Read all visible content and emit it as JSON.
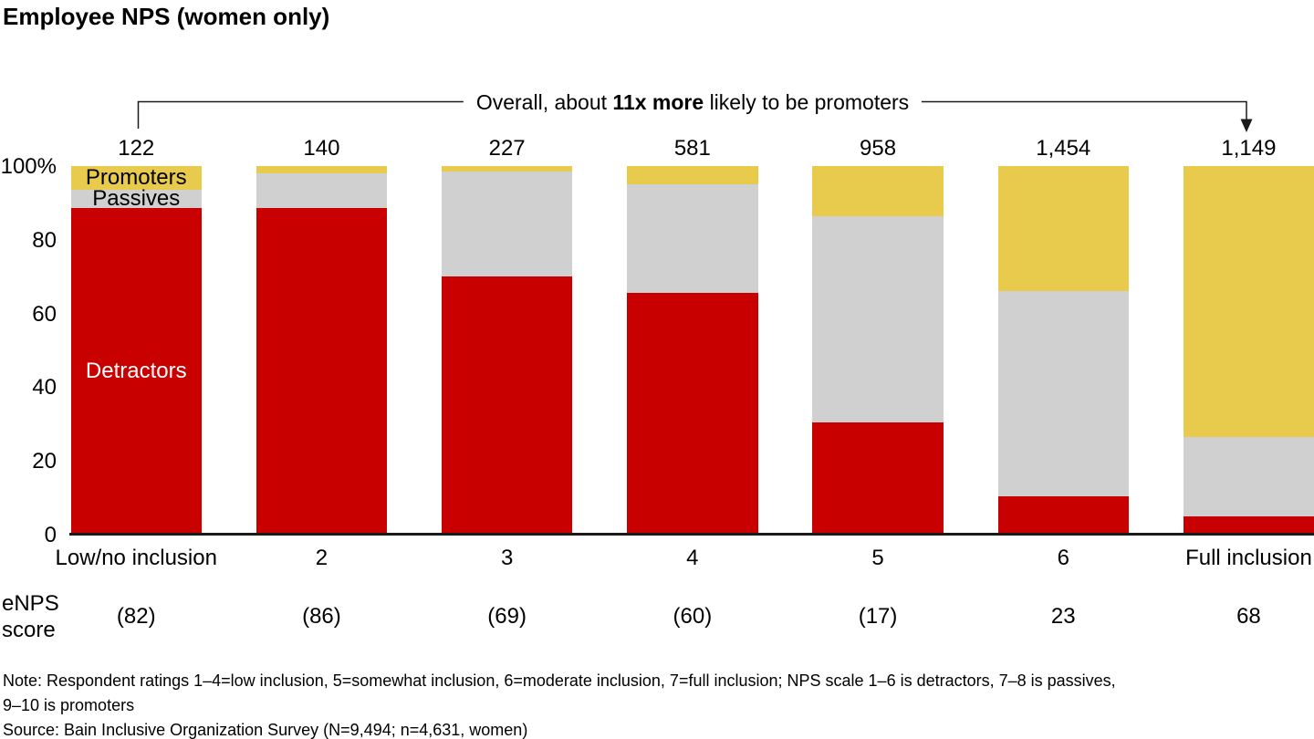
{
  "title": "Employee NPS (women only)",
  "annotation": {
    "prefix": "Overall, about ",
    "bold": "11x more",
    "suffix": " likely to be promoters"
  },
  "colors": {
    "detractors": "#C90000",
    "passives": "#D0D0D0",
    "promoters": "#E8CB4C",
    "axis": "#1A1A1A"
  },
  "segment_labels": {
    "detractors": "Detractors",
    "passives": "Passives",
    "promoters": "Promoters"
  },
  "y_axis": {
    "ticks": [
      "100%",
      "80",
      "60",
      "40",
      "20",
      "0"
    ],
    "values": [
      100,
      80,
      60,
      40,
      20,
      0
    ]
  },
  "enps_row": {
    "label_lines": [
      "eNPS",
      "score"
    ]
  },
  "notes": {
    "line1": "Note: Respondent ratings 1–4=low inclusion, 5=somewhat inclusion, 6=moderate inclusion, 7=full inclusion; NPS scale 1–6 is detractors, 7–8 is passives,",
    "line2": "9–10 is promoters",
    "source": "Source: Bain Inclusive Organization Survey (N=9,494; n=4,631, women)"
  },
  "chart_data": {
    "type": "bar",
    "stacked": true,
    "title": "Employee NPS (women only)",
    "unit": "% of respondents",
    "ylim": [
      0,
      100
    ],
    "grid": false,
    "legend_position": "inline-first-bar",
    "categories": [
      "Low/no inclusion",
      "2",
      "3",
      "4",
      "5",
      "6",
      "Full inclusion"
    ],
    "n_values": [
      "122",
      "140",
      "227",
      "581",
      "958",
      "1,454",
      "1,149"
    ],
    "enps_scores": [
      "(82)",
      "(86)",
      "(69)",
      "(60)",
      "(17)",
      "23",
      "68"
    ],
    "series": [
      {
        "name": "Detractors",
        "color_key": "detractors",
        "values": [
          88.5,
          88.5,
          70.0,
          65.5,
          30.5,
          10.5,
          5.0
        ]
      },
      {
        "name": "Passives",
        "color_key": "passives",
        "values": [
          5.0,
          9.5,
          28.5,
          29.5,
          56.0,
          55.5,
          21.5
        ]
      },
      {
        "name": "Promoters",
        "color_key": "promoters",
        "values": [
          6.5,
          2.0,
          1.5,
          5.0,
          13.5,
          34.0,
          73.5
        ]
      }
    ]
  }
}
